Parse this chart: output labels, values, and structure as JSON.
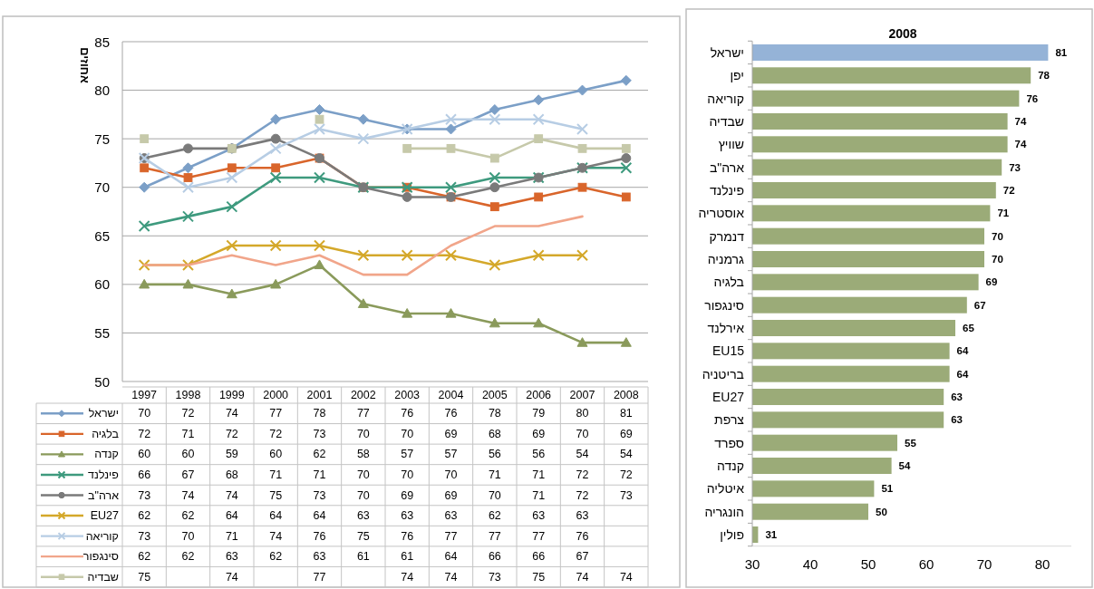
{
  "chart_data": [
    {
      "type": "line",
      "categories": [
        "1997",
        "1998",
        "1999",
        "2000",
        "2001",
        "2002",
        "2003",
        "2004",
        "2005",
        "2006",
        "2007",
        "2008"
      ],
      "ylabel": "אחוזים",
      "ylim": [
        50,
        85
      ],
      "yticks": [
        50,
        55,
        60,
        65,
        70,
        75,
        80,
        85
      ],
      "grid": "y",
      "legend": "bottom",
      "data_labels": true,
      "series": [
        {
          "name": "ישראל",
          "color": "#7b9fc7",
          "marker": "diamond",
          "values": [
            70,
            72,
            74,
            77,
            78,
            77,
            76,
            76,
            78,
            79,
            80,
            81
          ]
        },
        {
          "name": "בלגיה",
          "color": "#d9652b",
          "marker": "square",
          "values": [
            72,
            71,
            72,
            72,
            73,
            70,
            70,
            69,
            68,
            69,
            70,
            69
          ]
        },
        {
          "name": "קנדה",
          "color": "#8a9a5b",
          "marker": "triangle",
          "values": [
            60,
            60,
            59,
            60,
            62,
            58,
            57,
            57,
            56,
            56,
            54,
            54
          ]
        },
        {
          "name": "פינלנד",
          "color": "#3e9a7e",
          "marker": "cross",
          "values": [
            66,
            67,
            68,
            71,
            71,
            70,
            70,
            70,
            71,
            71,
            72,
            72
          ]
        },
        {
          "name": "ארה\"ב",
          "color": "#7a7a7a",
          "marker": "circle",
          "values": [
            73,
            74,
            74,
            75,
            73,
            70,
            69,
            69,
            70,
            71,
            72,
            73
          ]
        },
        {
          "name": "EU27",
          "color": "#d4a82a",
          "marker": "cross",
          "values": [
            62,
            62,
            64,
            64,
            64,
            63,
            63,
            63,
            62,
            63,
            63,
            null
          ]
        },
        {
          "name": "קוריאה",
          "color": "#b7cde4",
          "marker": "cross",
          "values": [
            73,
            70,
            71,
            74,
            76,
            75,
            76,
            77,
            77,
            77,
            76,
            null
          ]
        },
        {
          "name": "סינגפור",
          "color": "#f1a58a",
          "marker": "none",
          "values": [
            62,
            62,
            63,
            62,
            63,
            61,
            61,
            64,
            66,
            66,
            67,
            null
          ]
        },
        {
          "name": "שבדיה",
          "color": "#c6c9aa",
          "marker": "square",
          "values": [
            75,
            null,
            74,
            null,
            77,
            null,
            74,
            74,
            73,
            75,
            74,
            74
          ]
        }
      ]
    },
    {
      "type": "bar",
      "title": "2008",
      "orientation": "horizontal",
      "data_labels": true,
      "categories": [
        "ישראל",
        "יפן",
        "קוריאה",
        "שבדיה",
        "שוויץ",
        "ארה\"ב",
        "פינלנד",
        "אוסטריה",
        "דנמרק",
        "גרמניה",
        "בלגיה",
        "סינגפור",
        "אירלנד",
        "EU15",
        "בריטניה",
        "EU27",
        "צרפת",
        "ספרד",
        "קנדה",
        "איטליה",
        "הונגריה",
        "פולין"
      ],
      "values": [
        81,
        78,
        76,
        74,
        74,
        73,
        72,
        71,
        70,
        70,
        69,
        67,
        65,
        64,
        64,
        63,
        63,
        55,
        54,
        51,
        50,
        31
      ],
      "colors": [
        "#95b3d7",
        "#9bab78",
        "#9bab78",
        "#9bab78",
        "#9bab78",
        "#9bab78",
        "#9bab78",
        "#9bab78",
        "#9bab78",
        "#9bab78",
        "#9bab78",
        "#9bab78",
        "#9bab78",
        "#9bab78",
        "#9bab78",
        "#9bab78",
        "#9bab78",
        "#9bab78",
        "#9bab78",
        "#9bab78",
        "#9bab78",
        "#9bab78"
      ],
      "xlim": [
        30,
        85
      ],
      "xticks": [
        30,
        40,
        50,
        60,
        70,
        80
      ]
    }
  ]
}
